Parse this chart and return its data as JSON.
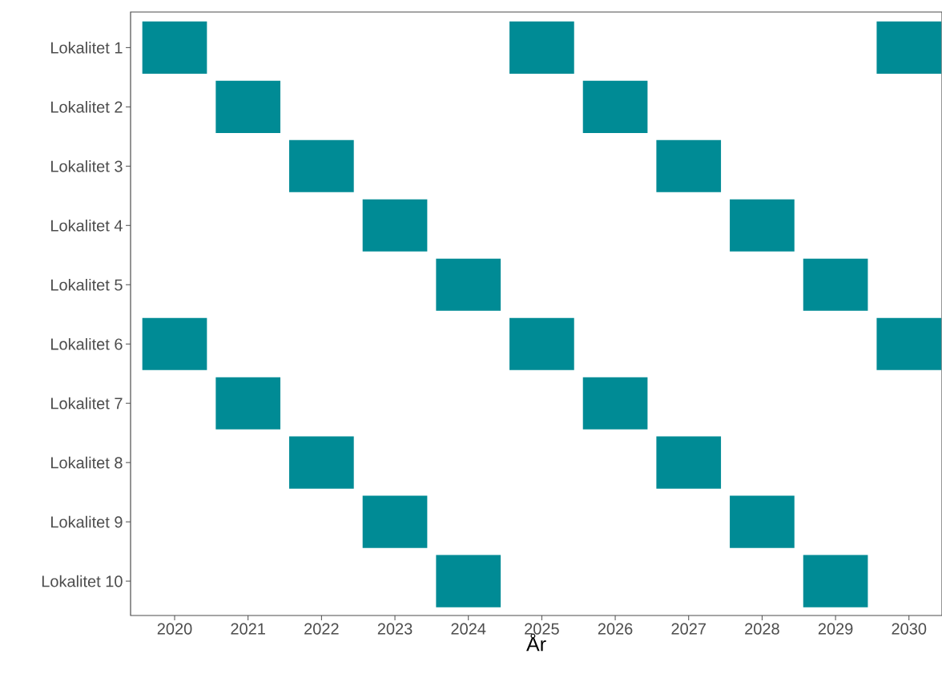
{
  "chart_data": {
    "type": "bar",
    "orientation": "horizontal",
    "xlabel": "År",
    "categories": [
      "Lokalitet 1",
      "Lokalitet 2",
      "Lokalitet 3",
      "Lokalitet 4",
      "Lokalitet 5",
      "Lokalitet 6",
      "Lokalitet 7",
      "Lokalitet 8",
      "Lokalitet 9",
      "Lokalitet 10"
    ],
    "xlim": [
      2019.4,
      2030.45
    ],
    "xticks": [
      2020,
      2021,
      2022,
      2023,
      2024,
      2025,
      2026,
      2027,
      2028,
      2029,
      2030
    ],
    "series": [
      {
        "color": "#008b95",
        "base": [
          2019.56,
          2020.56,
          2021.56,
          2022.56,
          2023.56,
          2019.56,
          2020.56,
          2021.56,
          2022.56,
          2023.56
        ],
        "values": [
          0.88,
          0.88,
          0.88,
          0.88,
          0.88,
          0.88,
          0.88,
          0.88,
          0.88,
          0.88
        ]
      },
      {
        "color": "#008b95",
        "base": [
          2024.56,
          2025.56,
          2026.56,
          2027.56,
          2028.56,
          2024.56,
          2025.56,
          2026.56,
          2027.56,
          2028.56
        ],
        "values": [
          0.88,
          0.88,
          0.88,
          0.88,
          0.88,
          0.88,
          0.88,
          0.88,
          0.88,
          0.88
        ]
      },
      {
        "color": "#008b95",
        "base": [
          2029.56,
          null,
          null,
          null,
          null,
          2029.56,
          null,
          null,
          null,
          null
        ],
        "values": [
          0.88,
          null,
          null,
          null,
          null,
          0.88,
          null,
          null,
          null,
          null
        ]
      }
    ]
  }
}
